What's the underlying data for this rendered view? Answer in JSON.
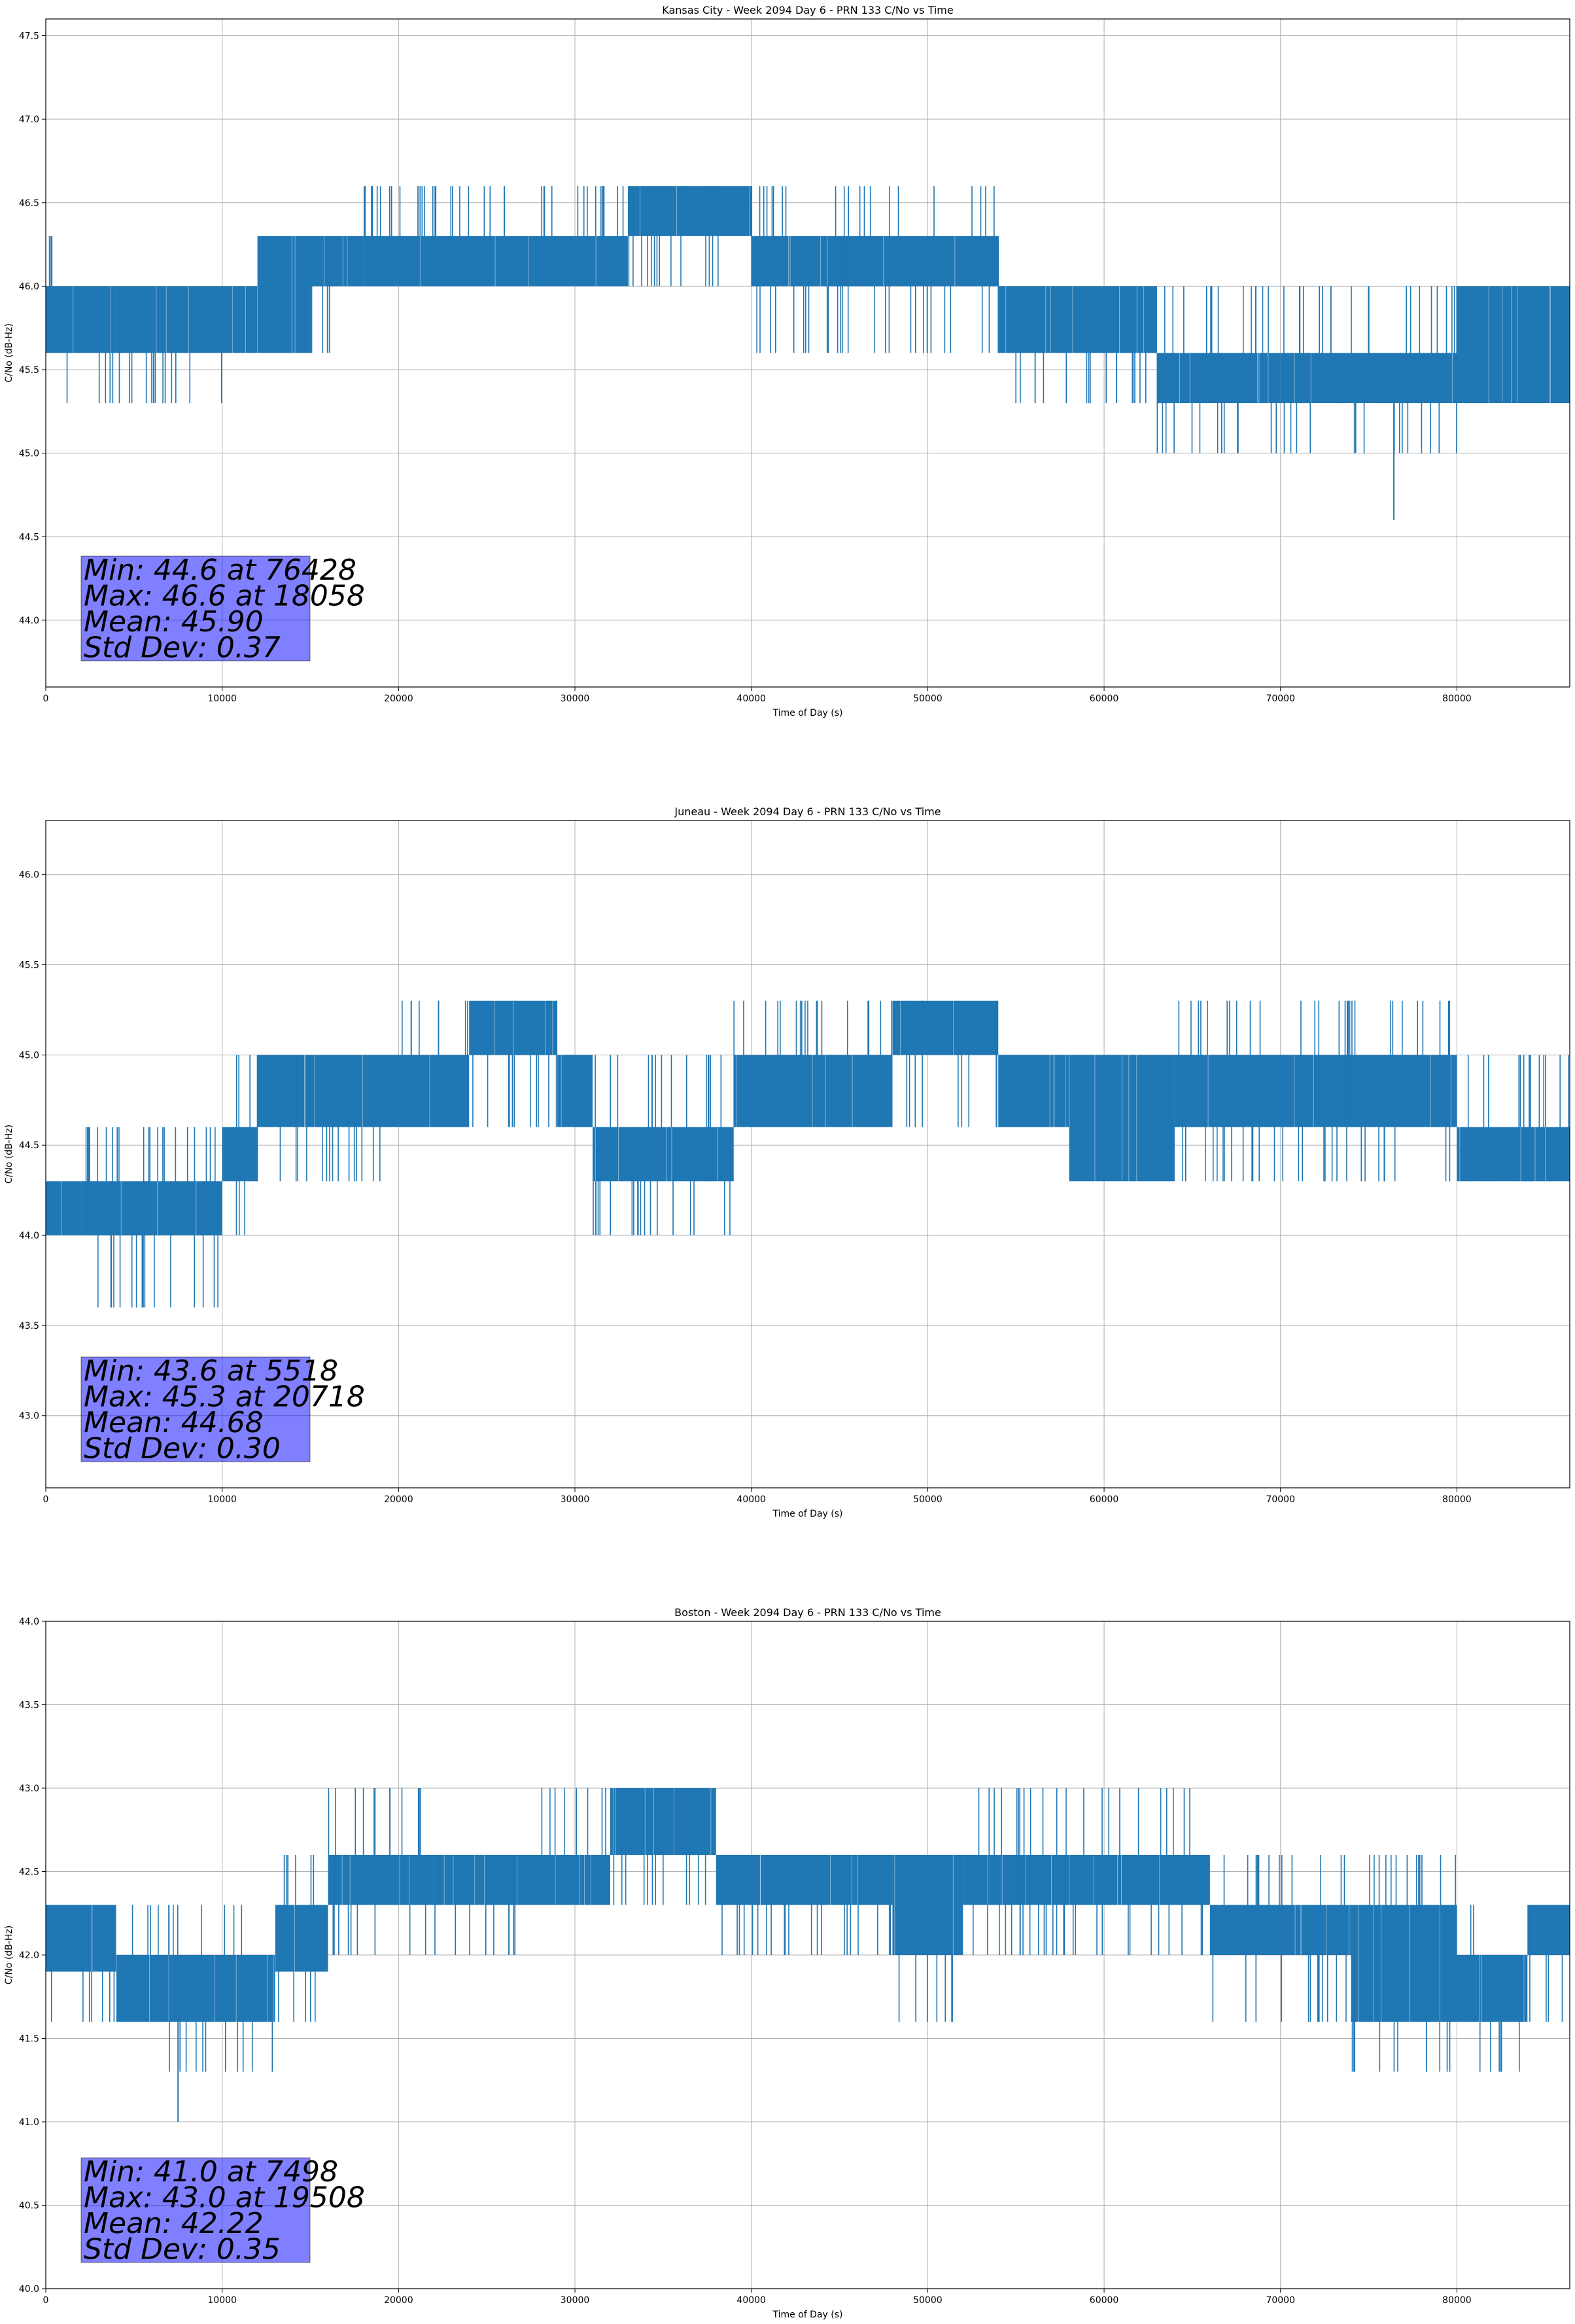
{
  "chart_data": [
    {
      "type": "line",
      "title": "Kansas City - Week 2094 Day 6 - PRN 133 C/No vs Time",
      "xlabel": "Time of Day (s)",
      "ylabel": "C/No (dB-Hz)",
      "xlim": [
        0,
        86400
      ],
      "ylim": [
        43.6,
        47.6
      ],
      "xticks": [
        0,
        10000,
        20000,
        30000,
        40000,
        50000,
        60000,
        70000,
        80000
      ],
      "yticks": [
        44.0,
        44.5,
        45.0,
        45.5,
        46.0,
        46.5,
        47.0,
        47.5
      ],
      "grid": true,
      "color": "#1f77b4",
      "series": [
        {
          "quant_step": 0.3,
          "segments": [
            {
              "x0": 0,
              "x1": 1000,
              "lo": 45.6,
              "hi": 46.0,
              "spikes_hi": [
                46.3
              ],
              "spikes_lo": []
            },
            {
              "x0": 1000,
              "x1": 4000,
              "lo": 45.6,
              "hi": 46.0,
              "spikes_hi": [],
              "spikes_lo": [
                45.3
              ]
            },
            {
              "x0": 4000,
              "x1": 10000,
              "lo": 45.6,
              "hi": 46.0,
              "spikes_hi": [],
              "spikes_lo": [
                45.3
              ]
            },
            {
              "x0": 10000,
              "x1": 12000,
              "lo": 45.6,
              "hi": 46.0,
              "spikes_hi": [],
              "spikes_lo": []
            },
            {
              "x0": 12000,
              "x1": 15000,
              "lo": 45.6,
              "hi": 46.3,
              "spikes_hi": [],
              "spikes_lo": []
            },
            {
              "x0": 15000,
              "x1": 18000,
              "lo": 46.0,
              "hi": 46.3,
              "spikes_hi": [],
              "spikes_lo": [
                45.6
              ]
            },
            {
              "x0": 18000,
              "x1": 26000,
              "lo": 46.0,
              "hi": 46.3,
              "spikes_hi": [
                46.6
              ],
              "spikes_lo": []
            },
            {
              "x0": 26000,
              "x1": 33000,
              "lo": 46.0,
              "hi": 46.3,
              "spikes_hi": [
                46.6
              ],
              "spikes_lo": []
            },
            {
              "x0": 33000,
              "x1": 40000,
              "lo": 46.3,
              "hi": 46.6,
              "spikes_hi": [],
              "spikes_lo": [
                46.0
              ]
            },
            {
              "x0": 40000,
              "x1": 54000,
              "lo": 46.0,
              "hi": 46.3,
              "spikes_hi": [
                46.6
              ],
              "spikes_lo": [
                45.6
              ]
            },
            {
              "x0": 54000,
              "x1": 63000,
              "lo": 45.6,
              "hi": 46.0,
              "spikes_hi": [],
              "spikes_lo": [
                45.3
              ]
            },
            {
              "x0": 63000,
              "x1": 70000,
              "lo": 45.3,
              "hi": 45.6,
              "spikes_hi": [
                46.0
              ],
              "spikes_lo": [
                45.0
              ]
            },
            {
              "x0": 70000,
              "x1": 80000,
              "lo": 45.3,
              "hi": 45.6,
              "spikes_hi": [
                46.0
              ],
              "spikes_lo": [
                45.0
              ]
            },
            {
              "x0": 80000,
              "x1": 86400,
              "lo": 45.3,
              "hi": 46.0,
              "spikes_hi": [],
              "spikes_lo": []
            }
          ],
          "extremes": [
            {
              "x": 76428,
              "y": 44.6
            },
            {
              "x": 18058,
              "y": 46.6
            }
          ]
        }
      ],
      "stats": {
        "line1": "Min: 44.6 at 76428",
        "line2": "Max: 46.6 at 18058",
        "line3": "Mean: 45.90",
        "line4": "Std Dev: 0.37"
      }
    },
    {
      "type": "line",
      "title": "Juneau - Week 2094 Day 6 - PRN 133 C/No vs Time",
      "xlabel": "Time of Day (s)",
      "ylabel": "C/No (dB-Hz)",
      "xlim": [
        0,
        86400
      ],
      "ylim": [
        42.6,
        46.3
      ],
      "xticks": [
        0,
        10000,
        20000,
        30000,
        40000,
        50000,
        60000,
        70000,
        80000
      ],
      "yticks": [
        43.0,
        43.5,
        44.0,
        44.5,
        45.0,
        45.5,
        46.0
      ],
      "grid": true,
      "color": "#1f77b4",
      "series": [
        {
          "quant_step": 0.3,
          "segments": [
            {
              "x0": 0,
              "x1": 2000,
              "lo": 44.0,
              "hi": 44.3,
              "spikes_hi": [],
              "spikes_lo": []
            },
            {
              "x0": 2000,
              "x1": 10000,
              "lo": 44.0,
              "hi": 44.3,
              "spikes_hi": [
                44.6
              ],
              "spikes_lo": [
                43.6
              ]
            },
            {
              "x0": 10000,
              "x1": 12000,
              "lo": 44.3,
              "hi": 44.6,
              "spikes_hi": [
                45.0
              ],
              "spikes_lo": [
                44.0
              ]
            },
            {
              "x0": 12000,
              "x1": 20000,
              "lo": 44.6,
              "hi": 45.0,
              "spikes_hi": [],
              "spikes_lo": [
                44.3
              ]
            },
            {
              "x0": 20000,
              "x1": 24000,
              "lo": 44.6,
              "hi": 45.0,
              "spikes_hi": [
                45.3
              ],
              "spikes_lo": []
            },
            {
              "x0": 24000,
              "x1": 29000,
              "lo": 45.0,
              "hi": 45.3,
              "spikes_hi": [],
              "spikes_lo": [
                44.6
              ]
            },
            {
              "x0": 29000,
              "x1": 31000,
              "lo": 44.6,
              "hi": 45.0,
              "spikes_hi": [],
              "spikes_lo": []
            },
            {
              "x0": 31000,
              "x1": 39000,
              "lo": 44.3,
              "hi": 44.6,
              "spikes_hi": [
                45.0
              ],
              "spikes_lo": [
                44.0
              ]
            },
            {
              "x0": 39000,
              "x1": 48000,
              "lo": 44.6,
              "hi": 45.0,
              "spikes_hi": [
                45.3
              ],
              "spikes_lo": []
            },
            {
              "x0": 48000,
              "x1": 54000,
              "lo": 45.0,
              "hi": 45.3,
              "spikes_hi": [],
              "spikes_lo": [
                44.6
              ]
            },
            {
              "x0": 54000,
              "x1": 58000,
              "lo": 44.6,
              "hi": 45.0,
              "spikes_hi": [],
              "spikes_lo": []
            },
            {
              "x0": 58000,
              "x1": 64000,
              "lo": 44.3,
              "hi": 45.0,
              "spikes_hi": [],
              "spikes_lo": []
            },
            {
              "x0": 64000,
              "x1": 80000,
              "lo": 44.6,
              "hi": 45.0,
              "spikes_hi": [
                45.3
              ],
              "spikes_lo": [
                44.3
              ]
            },
            {
              "x0": 80000,
              "x1": 86400,
              "lo": 44.3,
              "hi": 44.6,
              "spikes_hi": [
                45.0
              ],
              "spikes_lo": []
            }
          ],
          "extremes": [
            {
              "x": 5518,
              "y": 43.6
            },
            {
              "x": 20718,
              "y": 45.3
            }
          ]
        }
      ],
      "stats": {
        "line1": "Min: 43.6 at 5518",
        "line2": "Max: 45.3 at 20718",
        "line3": "Mean: 44.68",
        "line4": "Std Dev: 0.30"
      }
    },
    {
      "type": "line",
      "title": "Boston - Week 2094 Day 6 - PRN 133 C/No vs Time",
      "xlabel": "Time of Day (s)",
      "ylabel": "C/No (dB-Hz)",
      "xlim": [
        0,
        86400
      ],
      "ylim": [
        40.0,
        44.0
      ],
      "xticks": [
        0,
        10000,
        20000,
        30000,
        40000,
        50000,
        60000,
        70000,
        80000
      ],
      "yticks": [
        40.0,
        40.5,
        41.0,
        41.5,
        42.0,
        42.5,
        43.0,
        43.5,
        44.0
      ],
      "grid": true,
      "color": "#1f77b4",
      "series": [
        {
          "quant_step": 0.3,
          "segments": [
            {
              "x0": 0,
              "x1": 4000,
              "lo": 41.9,
              "hi": 42.3,
              "spikes_hi": [],
              "spikes_lo": [
                41.6
              ]
            },
            {
              "x0": 4000,
              "x1": 7000,
              "lo": 41.6,
              "hi": 42.0,
              "spikes_hi": [
                42.3
              ],
              "spikes_lo": []
            },
            {
              "x0": 7000,
              "x1": 13000,
              "lo": 41.6,
              "hi": 42.0,
              "spikes_hi": [
                42.3
              ],
              "spikes_lo": [
                41.3
              ]
            },
            {
              "x0": 13000,
              "x1": 16000,
              "lo": 41.9,
              "hi": 42.3,
              "spikes_hi": [
                42.6
              ],
              "spikes_lo": [
                41.6
              ]
            },
            {
              "x0": 16000,
              "x1": 22000,
              "lo": 42.3,
              "hi": 42.6,
              "spikes_hi": [
                43.0
              ],
              "spikes_lo": [
                42.0
              ]
            },
            {
              "x0": 22000,
              "x1": 28000,
              "lo": 42.3,
              "hi": 42.6,
              "spikes_hi": [],
              "spikes_lo": [
                42.0
              ]
            },
            {
              "x0": 28000,
              "x1": 32000,
              "lo": 42.3,
              "hi": 42.6,
              "spikes_hi": [
                43.0
              ],
              "spikes_lo": []
            },
            {
              "x0": 32000,
              "x1": 38000,
              "lo": 42.6,
              "hi": 43.0,
              "spikes_hi": [],
              "spikes_lo": [
                42.3
              ]
            },
            {
              "x0": 38000,
              "x1": 48000,
              "lo": 42.3,
              "hi": 42.6,
              "spikes_hi": [],
              "spikes_lo": [
                42.0
              ]
            },
            {
              "x0": 48000,
              "x1": 52000,
              "lo": 42.0,
              "hi": 42.6,
              "spikes_hi": [],
              "spikes_lo": [
                41.6
              ]
            },
            {
              "x0": 52000,
              "x1": 66000,
              "lo": 42.3,
              "hi": 42.6,
              "spikes_hi": [
                43.0
              ],
              "spikes_lo": [
                42.0
              ]
            },
            {
              "x0": 66000,
              "x1": 74000,
              "lo": 42.0,
              "hi": 42.3,
              "spikes_hi": [
                42.6
              ],
              "spikes_lo": [
                41.6
              ]
            },
            {
              "x0": 74000,
              "x1": 80000,
              "lo": 41.6,
              "hi": 42.3,
              "spikes_hi": [
                42.6
              ],
              "spikes_lo": [
                41.3
              ]
            },
            {
              "x0": 80000,
              "x1": 84000,
              "lo": 41.6,
              "hi": 42.0,
              "spikes_hi": [
                42.3
              ],
              "spikes_lo": [
                41.3
              ]
            },
            {
              "x0": 84000,
              "x1": 86400,
              "lo": 42.0,
              "hi": 42.3,
              "spikes_hi": [],
              "spikes_lo": [
                41.6
              ]
            }
          ],
          "extremes": [
            {
              "x": 7498,
              "y": 41.0
            },
            {
              "x": 19508,
              "y": 43.0
            }
          ]
        }
      ],
      "stats": {
        "line1": "Min: 41.0 at 7498",
        "line2": "Max: 43.0 at 19508",
        "line3": "Mean: 42.22",
        "line4": "Std Dev: 0.35"
      }
    }
  ]
}
